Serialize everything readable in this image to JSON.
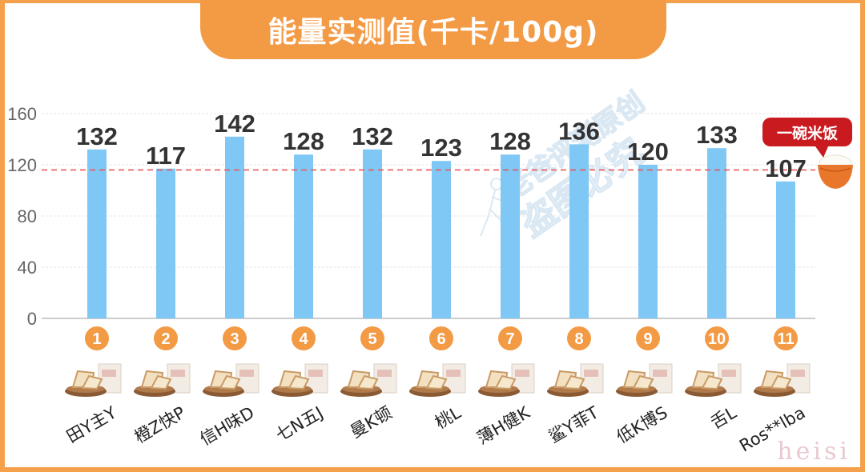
{
  "title": "能量实测值(千卡/100g)",
  "badge": {
    "label": "一碗米饭",
    "value": 116,
    "color": "#c91a1f"
  },
  "colors": {
    "bar": "#7fc8f5",
    "accent": "#f39a45",
    "refline": "#e8575a"
  },
  "chart_data": {
    "type": "bar",
    "categories": [
      "田Y主Y",
      "橙Z快P",
      "信H味D",
      "七N五J",
      "曼K顿",
      "桃L",
      "薄H健K",
      "鲨Y菲T",
      "低K博S",
      "舌L",
      "Ros**lba"
    ],
    "numbers": [
      "1",
      "2",
      "3",
      "4",
      "5",
      "6",
      "7",
      "8",
      "9",
      "10",
      "11"
    ],
    "values": [
      132,
      117,
      142,
      128,
      132,
      123,
      128,
      136,
      120,
      133,
      107
    ],
    "yticks": [
      0,
      40,
      80,
      120,
      160
    ],
    "ylim": [
      0,
      160
    ],
    "reference_line": {
      "value": 116,
      "label": "一碗米饭"
    },
    "grid": true
  },
  "watermark": {
    "line1": "老爸评测原创",
    "line2": "盗图必究"
  },
  "corner_text": "heisi"
}
